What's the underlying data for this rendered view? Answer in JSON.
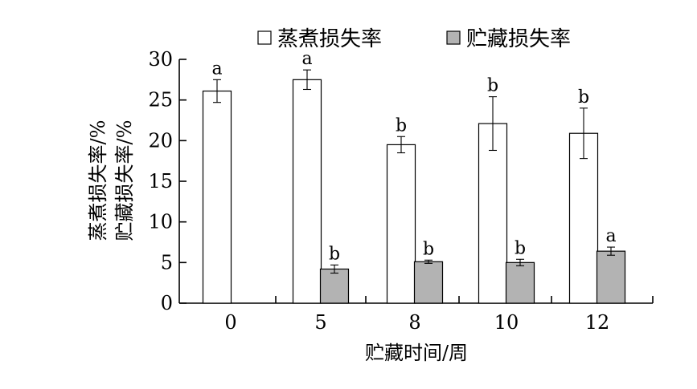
{
  "chart_data": {
    "type": "bar",
    "title": "",
    "xlabel": "贮藏时间/周",
    "ylabel_lines": [
      "蒸煮损失率/%",
      "贮藏损失率/%"
    ],
    "ylim": [
      0,
      30
    ],
    "yticks": [
      0,
      5,
      10,
      15,
      20,
      25,
      30
    ],
    "categories": [
      "0",
      "5",
      "8",
      "10",
      "12"
    ],
    "legend_position": "top",
    "series": [
      {
        "name": "蒸煮损失率",
        "color": "#ffffff",
        "values": [
          26.1,
          27.5,
          19.5,
          22.1,
          20.9
        ],
        "errors": [
          1.4,
          1.2,
          1.0,
          3.3,
          3.1
        ],
        "sig_labels": [
          "a",
          "a",
          "b",
          "b",
          "b"
        ]
      },
      {
        "name": "贮藏损失率",
        "color": "#b3b3b3",
        "values": [
          null,
          4.2,
          5.1,
          5.0,
          6.4
        ],
        "errors": [
          null,
          0.5,
          0.2,
          0.4,
          0.5
        ],
        "sig_labels": [
          "",
          "b",
          "b",
          "b",
          "a"
        ]
      }
    ]
  }
}
